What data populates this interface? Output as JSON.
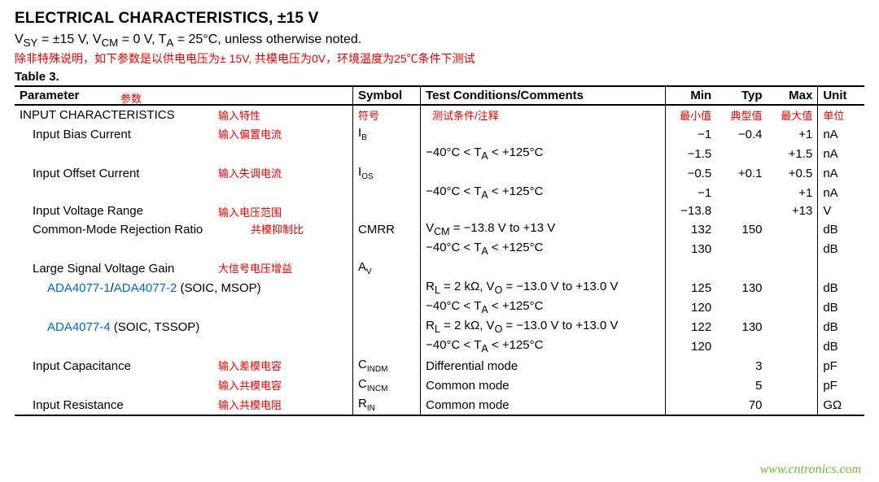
{
  "title": "ELECTRICAL CHARACTERISTICS, ±15 V",
  "condition_html": "V<sub>SY</sub> = ±15 V, V<sub>CM</sub> = 0 V, T<sub>A</sub> = 25°C, unless otherwise noted.",
  "red_note": "除非特殊说明，如下参数是以供电电压为± 15V, 共模电压为0V，环境温度为25℃条件下测试",
  "table_label": "Table 3.",
  "columns": {
    "parameter": "Parameter",
    "parameter_red": "参数",
    "symbol": "Symbol",
    "symbol_red": "符号",
    "conditions": "Test Conditions/Comments",
    "conditions_red": "测试条件/注释",
    "min": "Min",
    "min_red": "最小值",
    "typ": "Typ",
    "typ_red": "典型值",
    "max": "Max",
    "max_red": "最大值",
    "unit": "Unit",
    "unit_red": "单位"
  },
  "col_widths": {
    "param": 400,
    "symbol": 80,
    "cond": 290,
    "min": 60,
    "typ": 60,
    "max": 60,
    "unit": 55
  },
  "section": {
    "label": "INPUT CHARACTERISTICS",
    "red": "输入特性"
  },
  "rows": [
    {
      "param": "Input Bias Current",
      "indent": 1,
      "red": "输入偏置电流",
      "symbol_html": "I<span class='sub'>B</span>",
      "cond": "",
      "min": "−1",
      "typ": "−0.4",
      "max": "+1",
      "unit": "nA"
    },
    {
      "param": "",
      "indent": 1,
      "cond_html": "−40°C &lt; T<sub>A</sub> &lt; +125°C",
      "min": "−1.5",
      "typ": "",
      "max": "+1.5",
      "unit": "nA"
    },
    {
      "param": "Input Offset Current",
      "indent": 1,
      "red": "输入失调电流",
      "symbol_html": "I<span class='sub'>OS</span>",
      "cond": "",
      "min": "−0.5",
      "typ": "+0.1",
      "max": "+0.5",
      "unit": "nA"
    },
    {
      "param": "",
      "indent": 1,
      "cond_html": "−40°C &lt; T<sub>A</sub> &lt; +125°C",
      "min": "−1",
      "typ": "",
      "max": "+1",
      "unit": "nA"
    },
    {
      "param": "Input Voltage Range",
      "indent": 1,
      "red": "输入电压范围",
      "symbol": "",
      "cond": "",
      "min": "−13.8",
      "typ": "",
      "max": "+13",
      "unit": "V"
    },
    {
      "param": "Common-Mode Rejection Ratio",
      "indent": 1,
      "red": "共模抑制比",
      "red_narrow": true,
      "symbol": "CMRR",
      "cond_html": "V<sub>CM</sub> = −13.8 V to +13 V",
      "min": "132",
      "typ": "150",
      "max": "",
      "unit": "dB"
    },
    {
      "param": "",
      "indent": 1,
      "cond_html": "−40°C &lt; T<sub>A</sub> &lt; +125°C",
      "min": "130",
      "typ": "",
      "max": "",
      "unit": "dB"
    },
    {
      "param": "Large Signal Voltage Gain",
      "indent": 1,
      "red": "大信号电压增益",
      "symbol_html": "A<span class='sub'>V</span>",
      "cond": "",
      "min": "",
      "typ": "",
      "max": "",
      "unit": ""
    },
    {
      "param_html": "<span class='part-link'>ADA4077-1</span>/<span class='part-link'>ADA4077-2</span> (SOIC, MSOP)",
      "indent": 2,
      "cond_html": "R<sub>L</sub> = 2 kΩ, V<sub>O</sub> = −13.0 V to +13.0 V",
      "min": "125",
      "typ": "130",
      "max": "",
      "unit": "dB"
    },
    {
      "param": "",
      "indent": 2,
      "cond_html": "−40°C &lt; T<sub>A</sub> &lt; +125°C",
      "min": "120",
      "typ": "",
      "max": "",
      "unit": "dB"
    },
    {
      "param_html": "<span class='part-link'>ADA4077-4</span> (SOIC, TSSOP)",
      "indent": 2,
      "cond_html": "R<sub>L</sub> = 2 kΩ, V<sub>O</sub> = −13.0 V to +13.0 V",
      "min": "122",
      "typ": "130",
      "max": "",
      "unit": "dB"
    },
    {
      "param": "",
      "indent": 2,
      "cond_html": "−40°C &lt; T<sub>A</sub> &lt; +125°C",
      "min": "120",
      "typ": "",
      "max": "",
      "unit": "dB"
    },
    {
      "param": "Input Capacitance",
      "indent": 1,
      "red": "输入差模电容",
      "symbol_html": "C<span class='sub'>INDM</span>",
      "cond": "Differential mode",
      "min": "",
      "typ": "3",
      "max": "",
      "unit": "pF"
    },
    {
      "param": "",
      "indent": 1,
      "red": "输入共模电容",
      "symbol_html": "C<span class='sub'>INCM</span>",
      "cond": "Common mode",
      "min": "",
      "typ": "5",
      "max": "",
      "unit": "pF"
    },
    {
      "param": "Input Resistance",
      "indent": 1,
      "red": "输入共模电阻",
      "symbol_html": "R<span class='sub'>IN</span>",
      "cond": "Common mode",
      "min": "",
      "typ": "70",
      "max": "",
      "unit": "GΩ"
    }
  ],
  "watermark": "www.cntronics.com",
  "colors": {
    "red": "#e60000",
    "link": "#0066cc",
    "watermark": "#7fbf3f",
    "border": "#000000",
    "background": "#ffffff"
  }
}
